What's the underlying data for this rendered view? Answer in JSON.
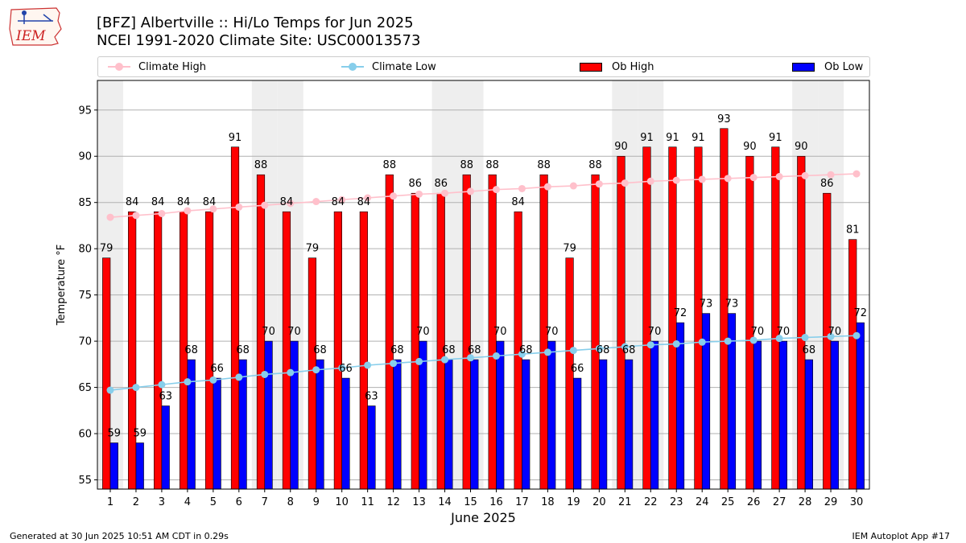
{
  "header": {
    "title_line1": "[BFZ] Albertville :: Hi/Lo Temps for Jun 2025",
    "title_line2": "NCEI 1991-2020 Climate Site: USC00013573"
  },
  "logo": {
    "text": "IEM",
    "icon": "iem-logo-icon"
  },
  "footer": {
    "generated": "Generated at 30 Jun 2025 10:51 AM CDT in 0.29s",
    "app": "IEM Autoplot App #17"
  },
  "legend": {
    "climate_high": "Climate High",
    "climate_low": "Climate Low",
    "ob_high": "Ob High",
    "ob_low": "Ob Low"
  },
  "colors": {
    "climate_high": "#ffc0cb",
    "climate_low": "#87ceeb",
    "ob_high": "#ff0000",
    "ob_low": "#0000ff",
    "weekend_shade": "#eeeeee",
    "grid": "#b0b0b0"
  },
  "chart_data": {
    "type": "bar",
    "xlabel": "June 2025",
    "ylabel": "Temperature °F",
    "ylim": [
      54,
      98.2
    ],
    "yticks": [
      55,
      60,
      65,
      70,
      75,
      80,
      85,
      90,
      95
    ],
    "grid": "horizontal",
    "legend_position": "top",
    "categories": [
      1,
      2,
      3,
      4,
      5,
      6,
      7,
      8,
      9,
      10,
      11,
      12,
      13,
      14,
      15,
      16,
      17,
      18,
      19,
      20,
      21,
      22,
      23,
      24,
      25,
      26,
      27,
      28,
      29,
      30
    ],
    "shaded_days": [
      1,
      7,
      8,
      14,
      15,
      21,
      22,
      28,
      29
    ],
    "series": [
      {
        "name": "Ob High",
        "kind": "bar",
        "values": [
          79,
          84,
          84,
          84,
          84,
          91,
          88,
          84,
          79,
          84,
          84,
          88,
          86,
          86,
          88,
          88,
          84,
          88,
          79,
          88,
          90,
          91,
          91,
          91,
          93,
          90,
          91,
          90,
          86,
          81
        ]
      },
      {
        "name": "Ob Low",
        "kind": "bar",
        "values": [
          59,
          59,
          63,
          68,
          66,
          68,
          70,
          70,
          68,
          66,
          63,
          68,
          70,
          68,
          68,
          70,
          68,
          70,
          66,
          68,
          68,
          70,
          72,
          73,
          73,
          70,
          70,
          68,
          70,
          72
        ]
      },
      {
        "name": "Climate High",
        "kind": "line",
        "values": [
          83.4,
          83.6,
          83.8,
          84.1,
          84.3,
          84.5,
          84.7,
          84.9,
          85.1,
          85.3,
          85.5,
          85.7,
          85.9,
          86.0,
          86.2,
          86.4,
          86.5,
          86.7,
          86.8,
          87.0,
          87.1,
          87.3,
          87.4,
          87.5,
          87.6,
          87.7,
          87.8,
          87.9,
          88.0,
          88.1
        ]
      },
      {
        "name": "Climate Low",
        "kind": "line",
        "values": [
          64.7,
          65.0,
          65.3,
          65.6,
          65.8,
          66.1,
          66.4,
          66.6,
          66.9,
          67.1,
          67.4,
          67.6,
          67.8,
          68.0,
          68.2,
          68.4,
          68.6,
          68.8,
          69.0,
          69.2,
          69.4,
          69.6,
          69.7,
          69.9,
          70.0,
          70.1,
          70.3,
          70.4,
          70.5,
          70.6
        ]
      }
    ]
  }
}
